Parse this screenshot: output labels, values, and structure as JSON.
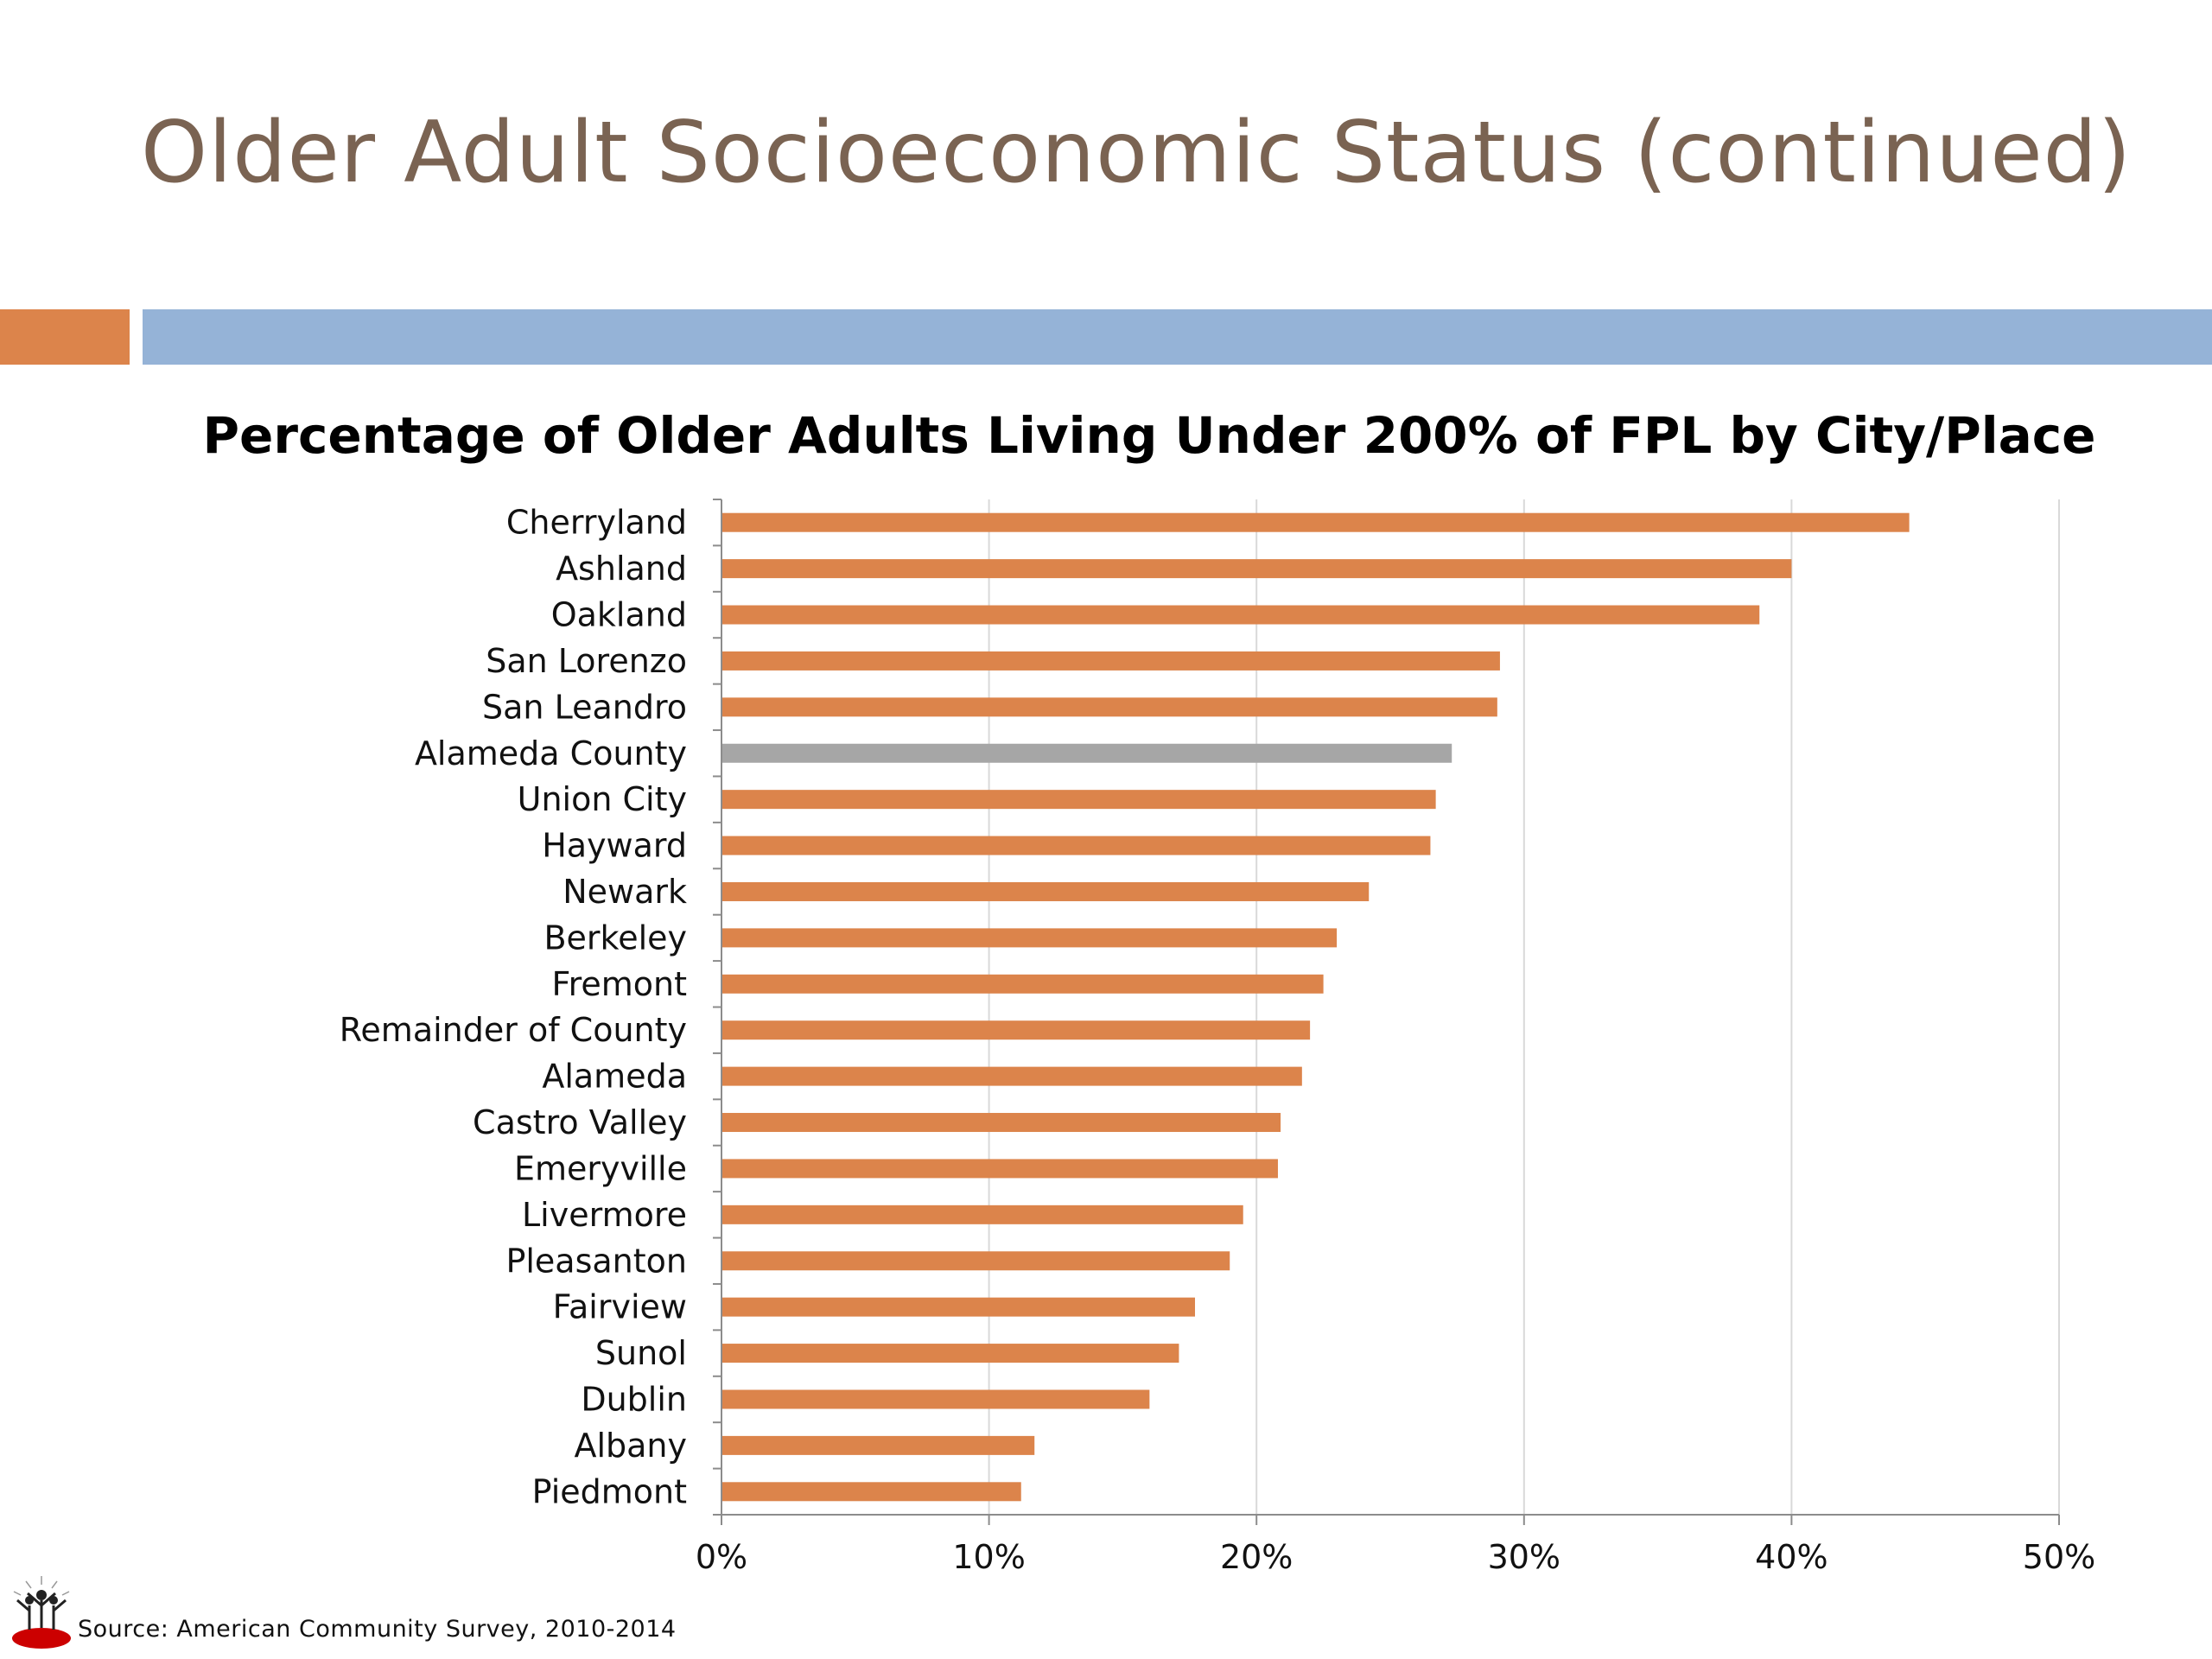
{
  "slide": {
    "title": "Older Adult Socioeconomic Status (continued)",
    "accent_colors": {
      "orange": "#dc844b",
      "blue": "#95b3d7"
    }
  },
  "chart_data": {
    "type": "bar",
    "orientation": "horizontal",
    "title": "Percentage of Older Adults Living Under 200% of FPL by City/Place",
    "categories": [
      "Cherryland",
      "Ashland",
      "Oakland",
      "San Lorenzo",
      "San Leandro",
      "Alameda County",
      "Union City",
      "Hayward",
      "Newark",
      "Berkeley",
      "Fremont",
      "Remainder of County",
      "Alameda",
      "Castro Valley",
      "Emeryville",
      "Livermore",
      "Pleasanton",
      "Fairview",
      "Sunol",
      "Dublin",
      "Albany",
      "Piedmont"
    ],
    "values": [
      44.4,
      40.0,
      38.8,
      29.1,
      29.0,
      27.3,
      26.7,
      26.5,
      24.2,
      23.0,
      22.5,
      22.0,
      21.7,
      20.9,
      20.8,
      19.5,
      19.0,
      17.7,
      17.1,
      16.0,
      11.7,
      11.2
    ],
    "xlim": [
      0,
      50
    ],
    "xticks": [
      "0%",
      "10%",
      "20%",
      "30%",
      "40%",
      "50%"
    ],
    "grid": true,
    "bar_color": "#dc844b",
    "highlight": {
      "category": "Alameda County",
      "color": "#a6a6a6"
    }
  },
  "source": {
    "text": "Source:  American Community Survey, 2010-2014",
    "logo_icon": "community-figures-logo-icon"
  }
}
